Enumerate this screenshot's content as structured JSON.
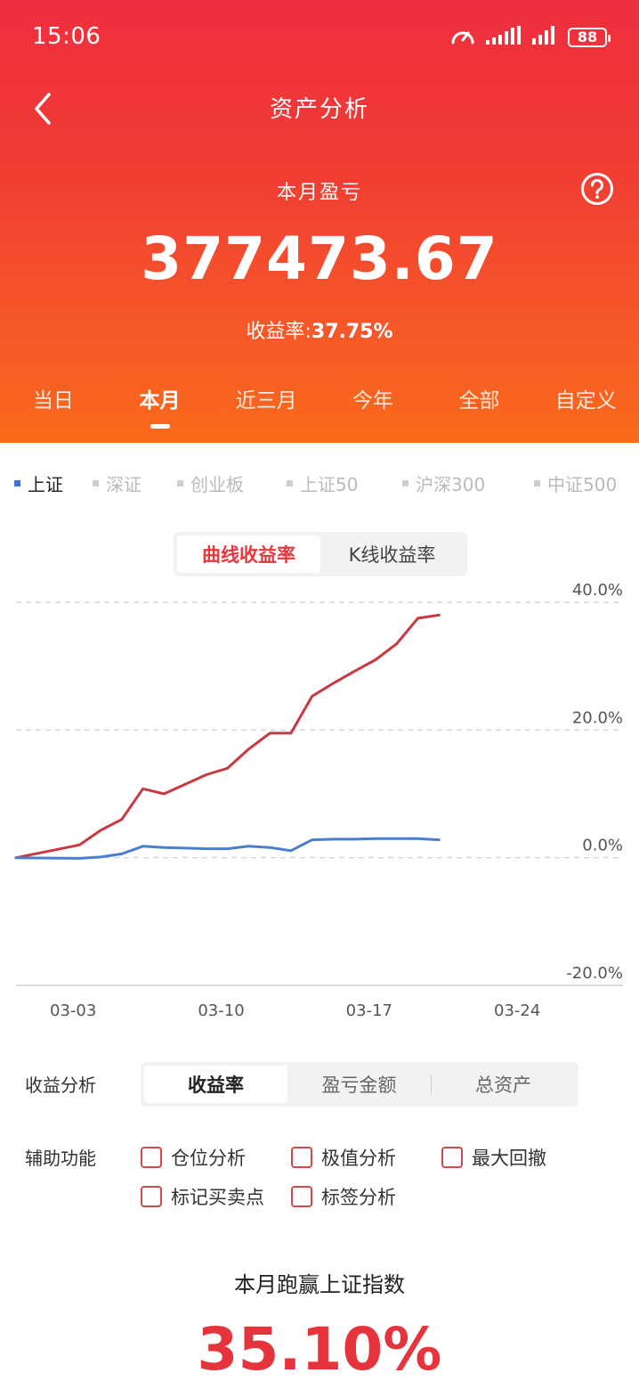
{
  "status": {
    "time": "15:06",
    "battery": "88"
  },
  "nav": {
    "title": "资产分析",
    "back_icon": "chevron-left-icon",
    "help_icon": "question-circle-icon"
  },
  "summary": {
    "label": "本月盈亏",
    "value": "377473.67",
    "rate_label": "收益率:",
    "rate_value": "37.75%"
  },
  "period_tabs": [
    {
      "label": "当日",
      "active": false
    },
    {
      "label": "本月",
      "active": true
    },
    {
      "label": "近三月",
      "active": false
    },
    {
      "label": "今年",
      "active": false
    },
    {
      "label": "全部",
      "active": false
    },
    {
      "label": "自定义",
      "active": false
    }
  ],
  "index_legend": [
    {
      "label": "上证",
      "active": true
    },
    {
      "label": "深证",
      "active": false
    },
    {
      "label": "创业板",
      "active": false
    },
    {
      "label": "上证50",
      "active": false
    },
    {
      "label": "沪深300",
      "active": false
    },
    {
      "label": "中证500",
      "active": false
    }
  ],
  "chart_toggle": [
    {
      "label": "曲线收益率",
      "active": true
    },
    {
      "label": "K线收益率",
      "active": false
    }
  ],
  "colors": {
    "accent": "#e8383d",
    "header_top": "#ee2f3f",
    "header_bottom": "#fa6a1a",
    "index_line": "#4a7fd0",
    "portfolio_line": "#c8393f"
  },
  "chart_data": {
    "type": "line",
    "y_tick_labels": [
      "40.0%",
      "20.0%",
      "0.0%",
      "-20.0%"
    ],
    "ylim": [
      -20,
      40
    ],
    "x_tick_labels": [
      "03-03",
      "03-10",
      "03-17",
      "03-24"
    ],
    "x_tick_days": [
      3,
      10,
      17,
      24
    ],
    "xlim": [
      0.3,
      29
    ],
    "grid": true,
    "series": [
      {
        "color": "#c8393f",
        "x": [
          0.3,
          3.3,
          4.3,
          5.3,
          6.3,
          7.3,
          8.3,
          9.3,
          10.3,
          11.3,
          12.3,
          13.3,
          14.3,
          15.3,
          16.3,
          17.3,
          18.3,
          19.3,
          20.3
        ],
        "values": [
          0.0,
          2.0,
          4.3,
          6.0,
          10.8,
          10.0,
          11.5,
          13.0,
          14.0,
          17.0,
          19.5,
          19.5,
          25.3,
          27.3,
          29.2,
          31.0,
          33.5,
          37.5,
          38.0
        ]
      },
      {
        "color": "#4a7fd0",
        "x": [
          0.3,
          3.3,
          4.3,
          5.3,
          6.3,
          7.3,
          8.3,
          9.3,
          10.3,
          11.3,
          12.3,
          13.3,
          14.3,
          15.3,
          16.3,
          17.3,
          18.3,
          19.3,
          20.3
        ],
        "values": [
          0.0,
          -0.1,
          0.1,
          0.6,
          1.8,
          1.6,
          1.5,
          1.4,
          1.4,
          1.8,
          1.6,
          1.1,
          2.8,
          2.9,
          2.9,
          3.0,
          3.0,
          3.0,
          2.8
        ]
      }
    ]
  },
  "analysis": {
    "label": "收益分析",
    "options": [
      {
        "label": "收益率",
        "active": true
      },
      {
        "label": "盈亏金额",
        "active": false
      },
      {
        "label": "总资产",
        "active": false
      }
    ]
  },
  "aux": {
    "label": "辅助功能",
    "options": [
      "仓位分析",
      "极值分析",
      "最大回撤",
      "标记买卖点",
      "标签分析"
    ]
  },
  "beat": {
    "title": "本月跑赢上证指数",
    "value": "35.10%"
  }
}
